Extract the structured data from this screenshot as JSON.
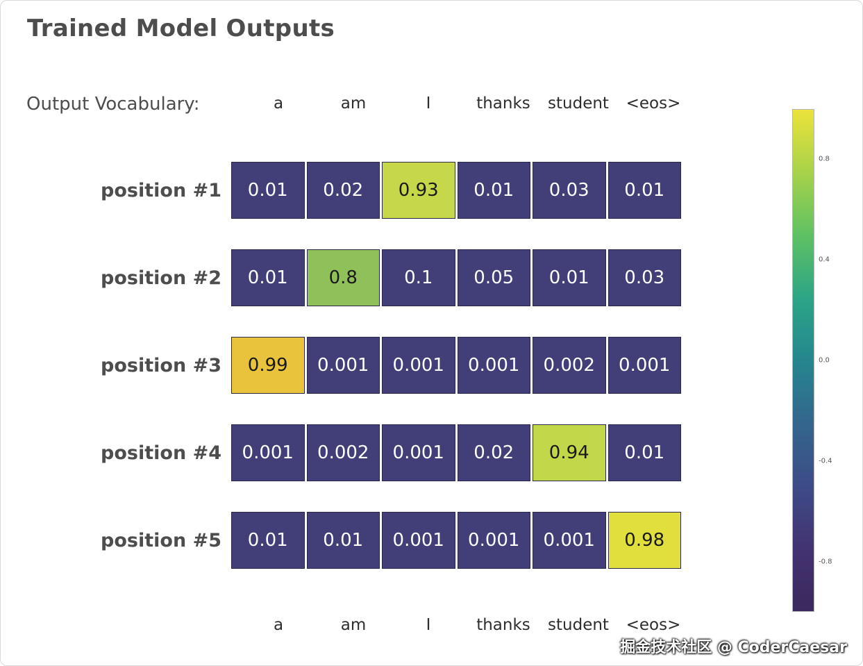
{
  "title": "Trained Model Outputs",
  "vocab_label": "Output Vocabulary:",
  "watermark": "掘金技术社区 @ CoderCaesar",
  "chart_data": {
    "type": "heatmap",
    "title": "Trained Model Outputs",
    "columns": [
      "a",
      "am",
      "I",
      "thanks",
      "student",
      "<eos>"
    ],
    "rows": [
      {
        "label": "position #1",
        "values": [
          "0.01",
          "0.02",
          "0.93",
          "0.01",
          "0.03",
          "0.01"
        ]
      },
      {
        "label": "position #2",
        "values": [
          "0.01",
          "0.8",
          "0.1",
          "0.05",
          "0.01",
          "0.03"
        ]
      },
      {
        "label": "position #3",
        "values": [
          "0.99",
          "0.001",
          "0.001",
          "0.001",
          "0.002",
          "0.001"
        ]
      },
      {
        "label": "position #4",
        "values": [
          "0.001",
          "0.002",
          "0.001",
          "0.02",
          "0.94",
          "0.01"
        ]
      },
      {
        "label": "position #5",
        "values": [
          "0.01",
          "0.01",
          "0.001",
          "0.001",
          "0.001",
          "0.98"
        ]
      }
    ],
    "colorbar": {
      "colormap": "viridis",
      "ticks": [
        "0.8",
        "0.4",
        "0.0",
        "-0.4",
        "-0.8"
      ]
    },
    "cell_colors": {
      "default_bg": "#413e78",
      "default_fg": "#ffffff",
      "highlight_fg": "#1a1a1a",
      "highlights": {
        "0.8": "#8fc05a",
        "0.93": "#c6d84a",
        "0.94": "#c3d74a",
        "0.98": "#e0df3e",
        "0.99": "#e9c33c"
      }
    }
  }
}
